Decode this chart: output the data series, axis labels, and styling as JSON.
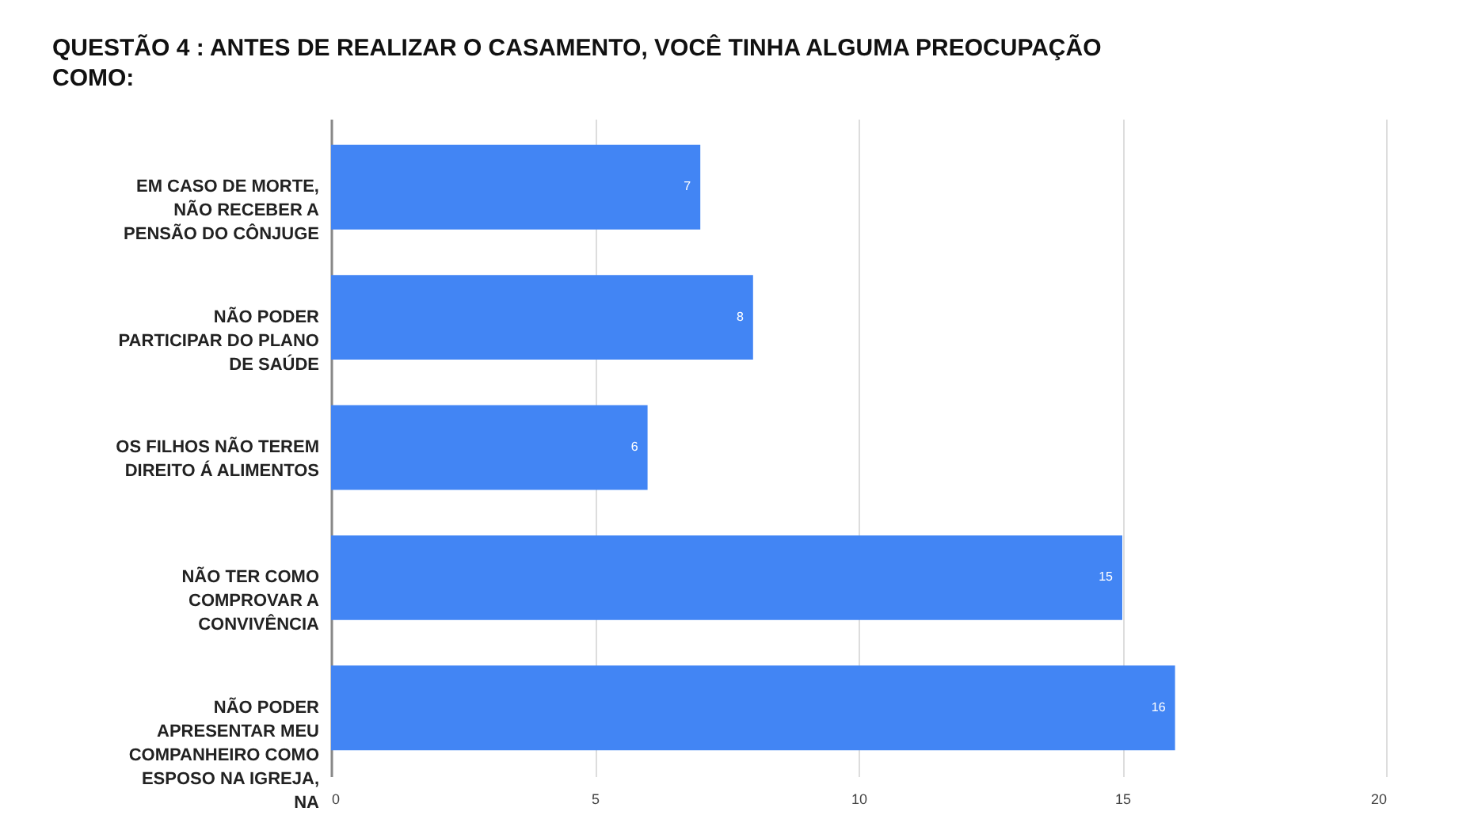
{
  "chart_data": {
    "type": "bar",
    "orientation": "horizontal",
    "title": "QUESTÃO 4 : ANTES DE REALIZAR O CASAMENTO, VOCÊ TINHA ALGUMA PREOCUPAÇÃO COMO:",
    "categories": [
      "EM CASO DE MORTE, NÃO RECEBER A PENSÃO DO CÔNJUGE",
      "NÃO PODER PARTICIPAR DO PLANO DE SAÚDE",
      "OS FILHOS NÃO TEREM DIREITO Á ALIMENTOS",
      "NÃO TER COMO COMPROVAR A CONVIVÊNCIA",
      "NÃO PODER APRESENTAR MEU COMPANHEIRO COMO ESPOSO NA IGREJA, NA"
    ],
    "values": [
      7,
      8,
      6,
      15,
      16
    ],
    "color": "#4285f4",
    "xlim": [
      0,
      20
    ],
    "xticks": [
      0,
      5,
      10,
      15,
      20
    ],
    "grid": "x",
    "data_labels": true
  }
}
